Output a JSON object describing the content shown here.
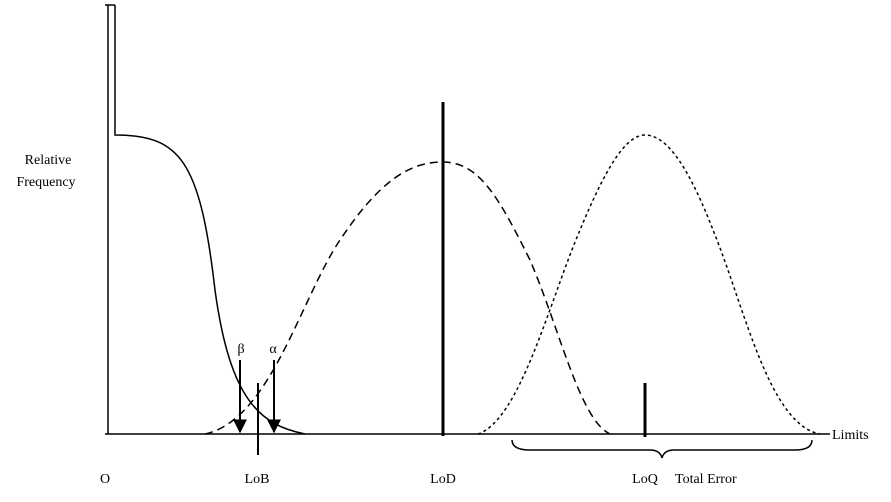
{
  "axis": {
    "y_label": [
      "Relative",
      "Frequency"
    ],
    "x_label": "Limits"
  },
  "markers": [
    "O",
    "LoB",
    "LoD",
    "LoQ"
  ],
  "arrows": [
    "β",
    "α"
  ],
  "brace_label": "Total Error"
}
